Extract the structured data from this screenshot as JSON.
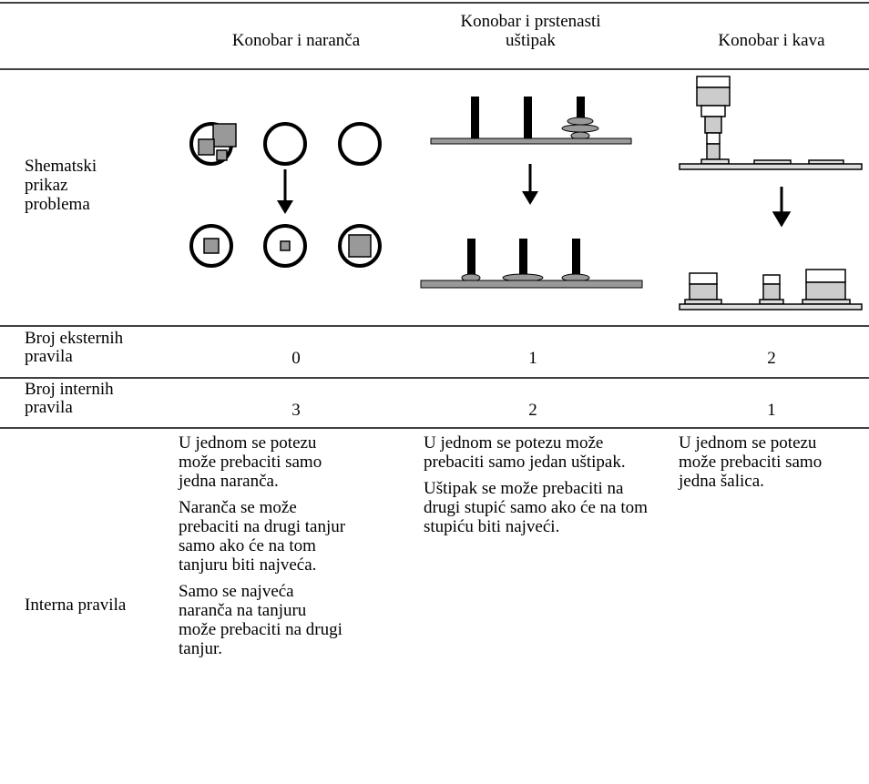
{
  "header": {
    "columns": [
      "Konobar i naranča",
      "Konobar i prstenasti uštipak",
      "Konobar i kava"
    ]
  },
  "rows": [
    {
      "label": "Shematski prikaz problema"
    },
    {
      "label": "Broj eksternih pravila",
      "cells": [
        0,
        1,
        2
      ]
    },
    {
      "label": "Broj internih pravila",
      "cells": [
        3,
        2,
        1
      ]
    },
    {
      "label": "Interna pravila",
      "cells": [
        [
          "U jednom se potezu može prebaciti samo jedna naranča.",
          "Naranča se može prebaciti na drugi tanjur samo ako će na tom tanjuru biti najveća.",
          "Samo se najveća naranča na tanjuru može prebaciti na drugi tanjur."
        ],
        [
          "U jednom se potezu može prebaciti samo jedan uštipak.",
          "Uštipak se može prebaciti na drugi stupić samo ako će na tom stupiću biti najveći."
        ],
        [
          "U jednom se potezu može prebaciti samo jedna šalica."
        ]
      ]
    }
  ]
}
